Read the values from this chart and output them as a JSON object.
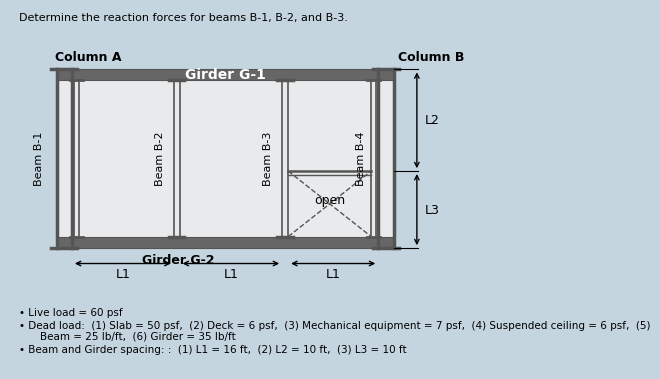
{
  "title": "Determine the reaction forces for beams B-1, B-2, and B-3.",
  "background_color": "#c5d5e0",
  "diagram_bg": "#e8eaec",
  "col_a_label": "Column A",
  "col_b_label": "Column B",
  "girder_g1_label": "Girder G-1",
  "girder_g2_label": "Girder G-2",
  "beam_labels": [
    "Beam B-1",
    "Beam B-2",
    "Beam B-3",
    "Beam B-4"
  ],
  "l1_label": "L1",
  "l2_label": "L2",
  "l3_label": "L3",
  "open_label": "open",
  "bullet1": "Live load = 60 psf",
  "bullet2_a": "Dead load:  (1) Slab = 50 psf,  (2) Deck = 6 psf,  (3) Mechanical equipment = 7 psf,  (4) Suspended ceiling = 6 psf,  (5)",
  "bullet2_b": "    Beam = 25 lb/ft,  (6) Girder = 35 lb/ft",
  "bullet3": "Beam and Girder spacing: :  (1) L1 = 16 ft,  (2) L2 = 10 ft,  (3) L3 = 10 ft",
  "struct_color": "#555555",
  "girder_fill": "#666666",
  "col_tick_color": "#444444"
}
